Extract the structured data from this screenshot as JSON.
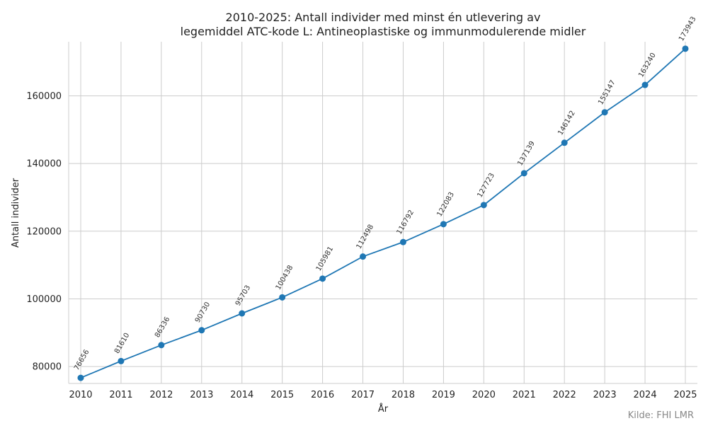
{
  "chart_data": {
    "type": "line",
    "title_lines": [
      "2010-2025: Antall individer med minst én utlevering av",
      "legemiddel ATC-kode L: Antineoplastiske og immunmodulerende midler"
    ],
    "xlabel": "År",
    "ylabel": "Antall individer",
    "x": [
      "2010",
      "2011",
      "2012",
      "2013",
      "2014",
      "2015",
      "2016",
      "2017",
      "2018",
      "2019",
      "2020",
      "2021",
      "2022",
      "2023",
      "2024",
      "2025"
    ],
    "series": [
      {
        "values": [
          76656,
          81610,
          86336,
          90730,
          95703,
          100438,
          105981,
          112498,
          116792,
          122083,
          127723,
          137139,
          146142,
          155147,
          163240,
          173943
        ],
        "color": "#1f77b4"
      }
    ],
    "data_labels": [
      "76656",
      "81610",
      "86336",
      "90730",
      "95703",
      "100438",
      "105981",
      "112498",
      "116792",
      "122083",
      "127723",
      "137139",
      "146142",
      "155147",
      "163240",
      "173943"
    ],
    "ylim": [
      75000,
      176000
    ],
    "yticks": [
      80000,
      100000,
      120000,
      140000,
      160000
    ],
    "ytick_labels": [
      "80000",
      "100000",
      "120000",
      "140000",
      "160000"
    ],
    "grid": true,
    "legend": "none",
    "colors": {
      "line": "#1f77b4",
      "grid": "#cccccc",
      "axis": "#cccccc"
    }
  },
  "source_note": "Kilde: FHI LMR"
}
